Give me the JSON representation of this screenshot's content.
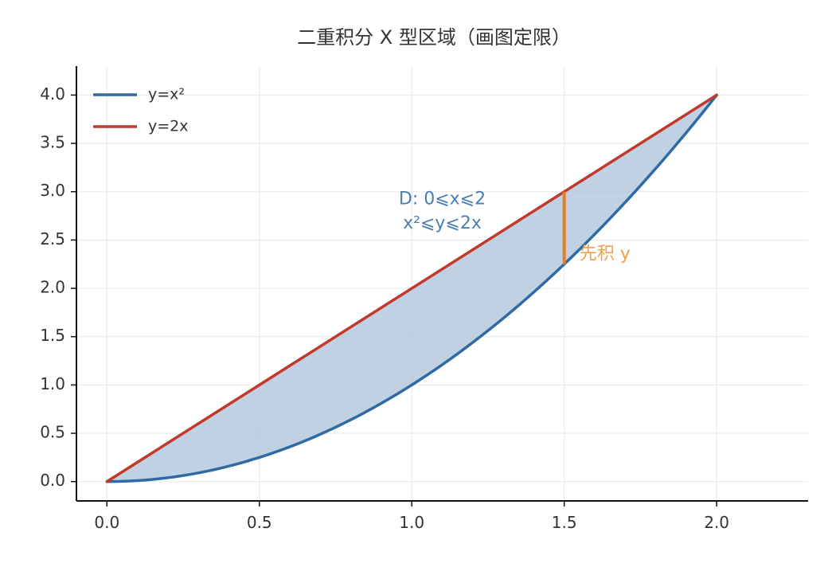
{
  "chart_data": {
    "type": "area",
    "title": "二重积分 X 型区域（画图定限）",
    "xlabel": "",
    "ylabel": "",
    "xlim": [
      -0.1,
      2.3
    ],
    "ylim": [
      -0.2,
      4.3
    ],
    "x_ticks": [
      0.0,
      0.5,
      1.0,
      1.5,
      2.0
    ],
    "x_tick_labels": [
      "0.0",
      "0.5",
      "1.0",
      "1.5",
      "2.0"
    ],
    "y_ticks": [
      0.0,
      0.5,
      1.0,
      1.5,
      2.0,
      2.5,
      3.0,
      3.5,
      4.0
    ],
    "y_tick_labels": [
      "0.0",
      "0.5",
      "1.0",
      "1.5",
      "2.0",
      "2.5",
      "3.0",
      "3.5",
      "4.0"
    ],
    "grid": true,
    "legend": "top-left",
    "series": [
      {
        "name": "y=x²",
        "color": "#2f6aa3",
        "x": [
          0.0,
          0.1,
          0.2,
          0.3,
          0.4,
          0.5,
          0.6,
          0.7,
          0.8,
          0.9,
          1.0,
          1.1,
          1.2,
          1.3,
          1.4,
          1.5,
          1.6,
          1.7,
          1.8,
          1.9,
          2.0
        ],
        "y": [
          0.0,
          0.01,
          0.04,
          0.09,
          0.16,
          0.25,
          0.36,
          0.49,
          0.64,
          0.81,
          1.0,
          1.21,
          1.44,
          1.69,
          1.96,
          2.25,
          2.56,
          2.89,
          3.24,
          3.61,
          4.0
        ]
      },
      {
        "name": "y=2x",
        "color": "#c0392b",
        "x": [
          0.0,
          2.0
        ],
        "y": [
          0.0,
          4.0
        ]
      }
    ],
    "fill_region": {
      "color": "#a9c1d9",
      "between": [
        "y=x²",
        "y=2x"
      ],
      "x_range": [
        0.0,
        2.0
      ]
    },
    "segment": {
      "x": 1.5,
      "y_from": 2.25,
      "y_to": 3.0,
      "color": "#e67e22",
      "label": "先积 y",
      "label_at": [
        1.55,
        2.35
      ]
    },
    "annotations": [
      {
        "text": "D: 0⩽x⩽2",
        "x": 1.1,
        "y": 2.92,
        "color": "#4a7fb5"
      },
      {
        "text": "x²⩽y⩽2x",
        "x": 1.1,
        "y": 2.67,
        "color": "#4a7fb5"
      }
    ]
  }
}
